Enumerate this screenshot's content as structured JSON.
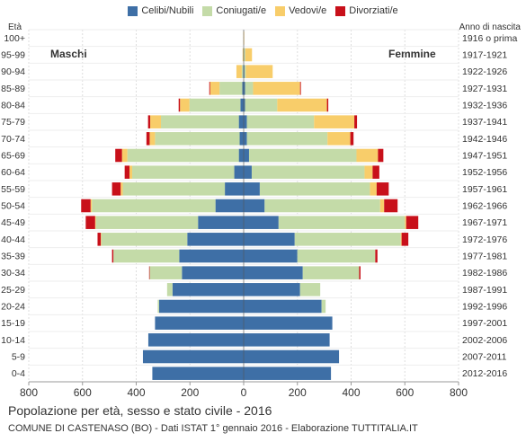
{
  "chart_data": {
    "type": "bar",
    "orientation": "horizontal-population-pyramid",
    "title": "Popolazione per età, sesso e stato civile - 2016",
    "subtitle": "COMUNE DI CASTENASO (BO) - Dati ISTAT 1° gennaio 2016 - Elaborazione TUTTITALIA.IT",
    "left_axis_title": "Età",
    "right_axis_title": "Anno di nascita",
    "left_side_label": "Maschi",
    "right_side_label": "Femmine",
    "xlim": [
      -800,
      800
    ],
    "x_tick_labels": [
      "800",
      "600",
      "400",
      "200",
      "0",
      "200",
      "400",
      "600",
      "800"
    ],
    "x_tick_values": [
      -800,
      -600,
      -400,
      -200,
      0,
      200,
      400,
      600,
      800
    ],
    "grid": true,
    "legend_position": "top",
    "series_colors": {
      "celibi": "#3e6fa6",
      "coniugati": "#c4dba8",
      "vedovi": "#f8cd6a",
      "divorziati": "#c8101a"
    },
    "legend": [
      {
        "key": "celibi",
        "label": "Celibi/Nubili"
      },
      {
        "key": "coniugati",
        "label": "Coniugati/e"
      },
      {
        "key": "vedovi",
        "label": "Vedovi/e"
      },
      {
        "key": "divorziati",
        "label": "Divorziati/e"
      }
    ],
    "categories": [
      "100+",
      "95-99",
      "90-94",
      "85-89",
      "80-84",
      "75-79",
      "70-74",
      "65-69",
      "60-64",
      "55-59",
      "50-54",
      "45-49",
      "40-44",
      "35-39",
      "30-34",
      "25-29",
      "20-24",
      "15-19",
      "10-14",
      "5-9",
      "0-4"
    ],
    "birth_years": [
      "1916 o prima",
      "1917-1921",
      "1922-1926",
      "1927-1931",
      "1932-1936",
      "1937-1941",
      "1942-1946",
      "1947-1951",
      "1952-1956",
      "1957-1961",
      "1962-1966",
      "1967-1971",
      "1972-1976",
      "1977-1981",
      "1982-1986",
      "1987-1991",
      "1992-1996",
      "1997-2001",
      "2002-2006",
      "2007-2011",
      "2012-2016"
    ],
    "males": {
      "celibi": [
        0,
        1,
        2,
        5,
        12,
        18,
        15,
        18,
        35,
        70,
        105,
        170,
        210,
        240,
        230,
        265,
        315,
        330,
        355,
        375,
        340
      ],
      "coniugati": [
        0,
        0,
        5,
        85,
        190,
        290,
        315,
        415,
        380,
        380,
        460,
        380,
        320,
        245,
        120,
        20,
        5,
        0,
        0,
        0,
        0
      ],
      "vedovi": [
        1,
        3,
        20,
        35,
        35,
        40,
        20,
        20,
        10,
        8,
        5,
        3,
        2,
        0,
        0,
        0,
        0,
        0,
        0,
        0,
        0
      ],
      "divorziati": [
        0,
        0,
        0,
        3,
        5,
        8,
        12,
        25,
        18,
        32,
        35,
        35,
        12,
        5,
        2,
        0,
        0,
        0,
        0,
        0,
        0
      ]
    },
    "females": {
      "celibi": [
        0,
        1,
        3,
        5,
        5,
        12,
        12,
        20,
        30,
        60,
        78,
        130,
        190,
        200,
        220,
        210,
        290,
        330,
        320,
        355,
        325
      ],
      "coniugati": [
        0,
        5,
        5,
        30,
        120,
        250,
        300,
        400,
        420,
        410,
        430,
        470,
        395,
        290,
        210,
        75,
        15,
        0,
        0,
        0,
        0
      ],
      "vedovi": [
        2,
        25,
        100,
        175,
        185,
        150,
        85,
        80,
        30,
        25,
        15,
        5,
        3,
        0,
        0,
        0,
        0,
        0,
        0,
        0,
        0
      ],
      "divorziati": [
        0,
        0,
        0,
        3,
        5,
        10,
        12,
        20,
        25,
        45,
        50,
        45,
        25,
        8,
        5,
        0,
        0,
        0,
        0,
        0,
        0
      ]
    }
  }
}
